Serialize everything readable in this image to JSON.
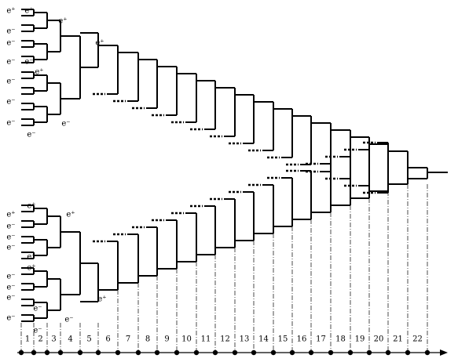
{
  "labels": [
    "e⁺",
    "e⁺",
    "e⁻",
    "e⁻",
    "e⁻",
    "e⁻",
    "e⁻",
    "e⁺",
    "e⁻",
    "e⁻",
    "e⁻",
    "e⁺",
    "e⁺",
    "e⁻",
    "e⁺",
    "e⁺",
    "e⁻",
    "e⁻",
    "e⁻",
    "e⁻",
    "e⁺",
    "e⁻",
    "e⁺",
    "e⁻",
    "e⁻",
    "e⁻",
    "e⁻",
    "e⁻",
    "e⁻",
    "e⁺"
  ],
  "steps": [
    1,
    2,
    3,
    4,
    5,
    6,
    7,
    8,
    9,
    10,
    11,
    12,
    13,
    14,
    15,
    16,
    17,
    18,
    19,
    20,
    21,
    22
  ]
}
